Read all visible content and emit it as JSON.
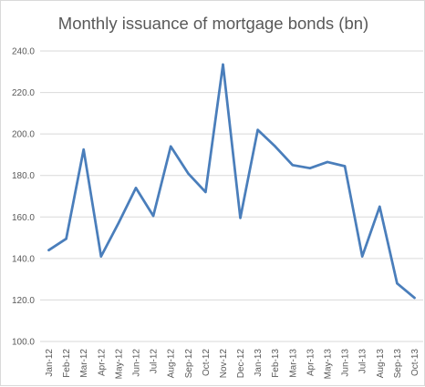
{
  "chart_data": {
    "type": "line",
    "title": "Monthly issuance of mortgage bonds (bn)",
    "xlabel": "",
    "ylabel": "",
    "ylim": [
      100,
      240
    ],
    "yticks": [
      "100.0",
      "120.0",
      "140.0",
      "160.0",
      "180.0",
      "200.0",
      "220.0",
      "240.0"
    ],
    "grid": true,
    "legend": "none",
    "line_color": "#4a7ebb",
    "grid_color": "#d9d9d9",
    "categories": [
      "Jan-12",
      "Feb-12",
      "Mar-12",
      "Apr-12",
      "May-12",
      "Jun-12",
      "Jul-12",
      "Aug-12",
      "Sep-12",
      "Oct-12",
      "Nov-12",
      "Dec-12",
      "Jan-13",
      "Feb-13",
      "Mar-13",
      "Apr-13",
      "May-13",
      "Jun-13",
      "Jul-13",
      "Aug-13",
      "Sep-13",
      "Oct-13"
    ],
    "series": [
      {
        "values": [
          144,
          149.5,
          192.5,
          141,
          157,
          174,
          160.5,
          194,
          181,
          172,
          233.5,
          159.5,
          202,
          194,
          185,
          183.5,
          186.5,
          184.5,
          141,
          165,
          128,
          121
        ]
      }
    ]
  }
}
